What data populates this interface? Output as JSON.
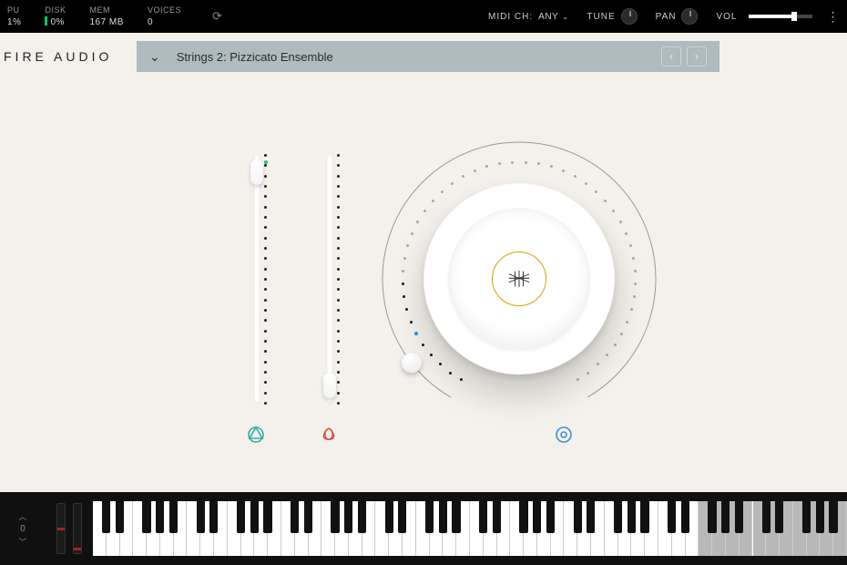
{
  "topbar": {
    "cpu": {
      "label": "PU",
      "value": "1%"
    },
    "disk": {
      "label": "DISK",
      "value": "0%",
      "bar_color": "#00cc66"
    },
    "mem": {
      "label": "MEM",
      "value": "167 MB"
    },
    "voices": {
      "label": "VOICES",
      "value": "0"
    },
    "midi_label": "MIDI CH:",
    "midi_value": "ANY",
    "tune_label": "TUNE",
    "pan_label": "PAN",
    "vol_label": "VOL",
    "vol_percent": 72
  },
  "logo": "FIRE AUDIO",
  "preset": {
    "name": "Strings 2: Pizzicato Ensemble",
    "bar_color": "#aebbbf"
  },
  "sliders": {
    "slider1": {
      "value_percent": 98,
      "dot_count": 25,
      "led_color": "#1fc47a",
      "led_position_percent": 3
    },
    "slider2": {
      "value_percent": 2,
      "dot_count": 25
    }
  },
  "knob": {
    "angle_deg": -128,
    "arc_start_deg": -150,
    "arc_end_deg": 150,
    "arc_radius": 150,
    "dot_count": 48,
    "active_until_deg": -90,
    "led_blue_deg": -118,
    "outline_color": "#999999",
    "badge_color": "#d6a400"
  },
  "icons": {
    "icon1_color": "#2fb0a8",
    "icon2_color": "#d84a3b",
    "icon3_color": "#3a8fd6"
  },
  "keyboard": {
    "octave_value": "0",
    "wheel1_mark_percent": 50,
    "wheel2_mark_percent": 92,
    "white_key_count": 56,
    "dim_from_white": 45,
    "dim_to_white": 56,
    "mark_color": "#aa1f1f"
  },
  "colors": {
    "background": "#f4f1ec",
    "topbar_bg": "#000000"
  }
}
